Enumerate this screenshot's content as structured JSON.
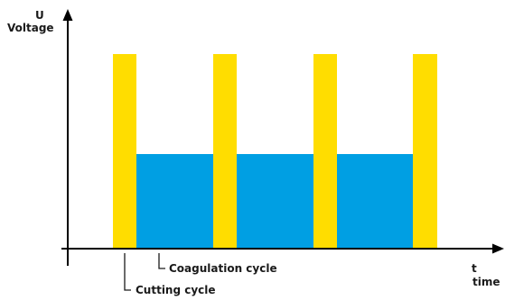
{
  "axes": {
    "y_symbol": "U",
    "y_label": "Voltage",
    "x_symbol": "t",
    "x_label": "time"
  },
  "annotations": {
    "coagulation": "Coagulation cycle",
    "cutting": "Cutting cycle"
  },
  "colors": {
    "cutting": "#FFDD00",
    "coagulation": "#009FE3",
    "axis": "#000000"
  },
  "waveform": {
    "cutting_level": 1.0,
    "coagulation_level": 0.49,
    "pulse_count": 4
  }
}
